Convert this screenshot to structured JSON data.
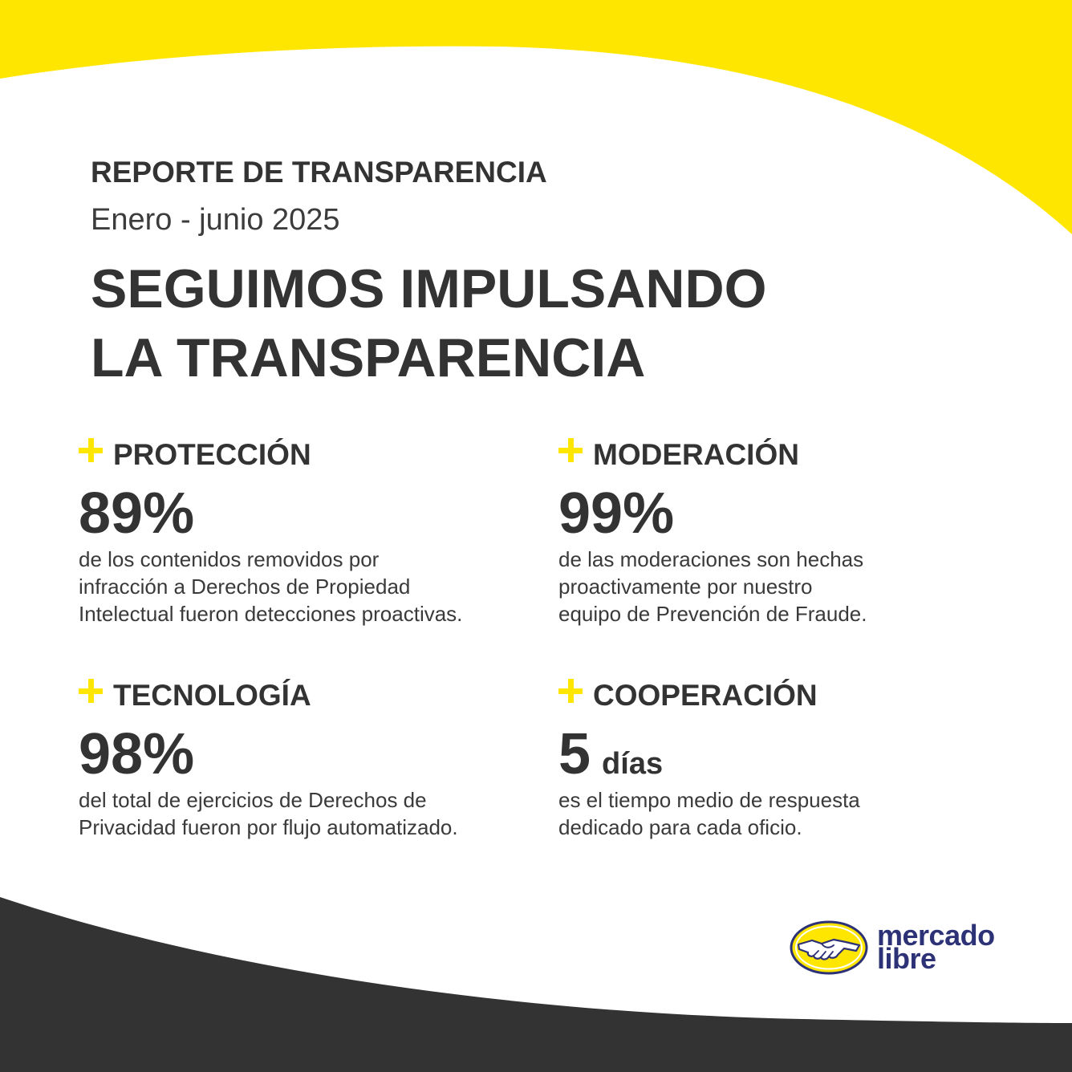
{
  "header": {
    "eyebrow": "REPORTE DE TRANSPARENCIA",
    "period": "Enero - junio 2025",
    "headline_line1": "SEGUIMOS IMPULSANDO",
    "headline_line2": "LA TRANSPARENCIA"
  },
  "stats": [
    {
      "title": "PROTECCIÓN",
      "value": "89%",
      "description": [
        "de los contenidos removidos por",
        "infracción a Derechos de Propiedad",
        "Intelectual fueron detecciones proactivas."
      ]
    },
    {
      "title": "MODERACIÓN",
      "value": "99%",
      "description": [
        "de las moderaciones son hechas",
        "proactivamente por nuestro",
        "equipo de Prevención de Fraude."
      ]
    },
    {
      "title": "TECNOLOGÍA",
      "value": "98%",
      "description": [
        "del total de ejercicios de Derechos de",
        "Privacidad fueron por flujo automatizado."
      ]
    },
    {
      "title": "COOPERACIÓN",
      "value": "5",
      "unit": "días",
      "description": [
        "es el tiempo medio de respuesta",
        "dedicado para cada oficio."
      ]
    }
  ],
  "brand": {
    "logo_line1": "mercado",
    "logo_line2": "libre"
  },
  "icons": {
    "bullet": "plus-icon",
    "logo": "handshake-icon"
  },
  "colors": {
    "accent": "#FFE600",
    "text": "#333333",
    "bottom_band": "#333333",
    "brand_blue": "#2D3277"
  }
}
